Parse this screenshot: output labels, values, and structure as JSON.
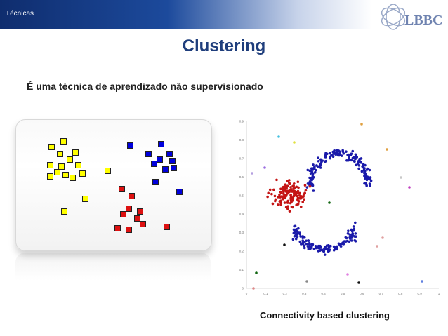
{
  "header": {
    "section": "Técnicas",
    "logo_text": "LBBC"
  },
  "slide": {
    "title": "Clustering",
    "subtitle": "É uma técnica de aprendizado não supervisionado"
  },
  "right_figure": {
    "caption": "Connectivity based clustering",
    "x_ticks": [
      "0",
      "0.1",
      "0.2",
      "0.3",
      "0.4",
      "0.5",
      "0.6",
      "0.7",
      "0.8",
      "0.9",
      "1"
    ],
    "y_ticks": [
      "0",
      "0.1",
      "0.2",
      "0.3",
      "0.4",
      "0.5",
      "0.6",
      "0.7",
      "0.8",
      "0.9"
    ]
  },
  "colors": {
    "title": "#1f3e7c",
    "yellow": "#ffff00",
    "blue": "#0000dd",
    "red": "#dd1111",
    "scatter_blue": "#1a1aaa",
    "scatter_red": "#c41414"
  }
}
